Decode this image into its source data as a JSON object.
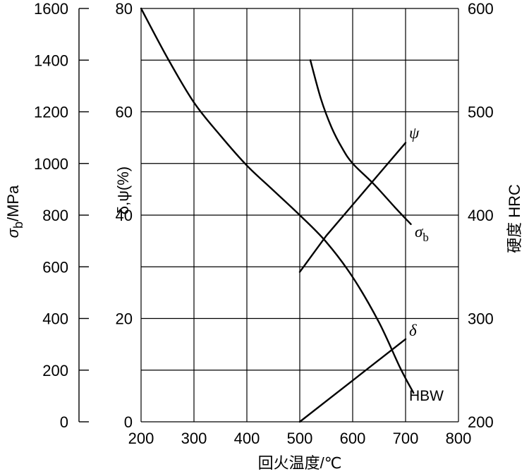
{
  "chart_data": {
    "type": "line",
    "title": "",
    "xlabel": "回火温度/℃",
    "x_ticks": [
      "200",
      "300",
      "400",
      "500",
      "600",
      "700",
      "800"
    ],
    "xlim": [
      200,
      800
    ],
    "axes": {
      "sigma": {
        "label_main": "σ",
        "label_sub": "b",
        "label_rest": "/MPa",
        "ylim": [
          0,
          1600
        ],
        "ticks": [
          "0",
          "200",
          "400",
          "600",
          "800",
          "1000",
          "1200",
          "1400",
          "1600"
        ]
      },
      "pct": {
        "label": "δ,ψ(%)",
        "ylim": [
          0,
          80
        ],
        "ticks": [
          "0",
          "20",
          "40",
          "60",
          "80"
        ]
      },
      "hrc": {
        "label": "硬度 HRC",
        "ylim": [
          200,
          600
        ],
        "ticks": [
          "200",
          "300",
          "400",
          "500",
          "600"
        ]
      }
    },
    "grid": true,
    "series": [
      {
        "name": "HBW",
        "axis": "hrc",
        "x": [
          200,
          250,
          300,
          350,
          400,
          450,
          500,
          550,
          600,
          650,
          690,
          715
        ],
        "y": [
          600,
          552,
          509,
          477,
          448,
          424,
          400,
          374,
          340,
          296,
          252,
          228
        ]
      },
      {
        "name": "σ_b",
        "axis": "sigma",
        "x": [
          520,
          540,
          560,
          580,
          600,
          640,
          680,
          710
        ],
        "y": [
          1400,
          1250,
          1140,
          1060,
          1000,
          920,
          830,
          765
        ]
      },
      {
        "name": "ψ",
        "axis": "pct",
        "x": [
          500,
          550,
          600,
          650,
          700
        ],
        "y": [
          29,
          36,
          42,
          48,
          54
        ]
      },
      {
        "name": "δ",
        "axis": "pct",
        "x": [
          500,
          550,
          600,
          650,
          700
        ],
        "y": [
          0,
          4,
          8,
          12,
          16
        ]
      }
    ],
    "labels": {
      "psi": "ψ",
      "sigma_main": "σ",
      "sigma_sub": "b",
      "delta": "δ",
      "hbw": "HBW"
    }
  }
}
